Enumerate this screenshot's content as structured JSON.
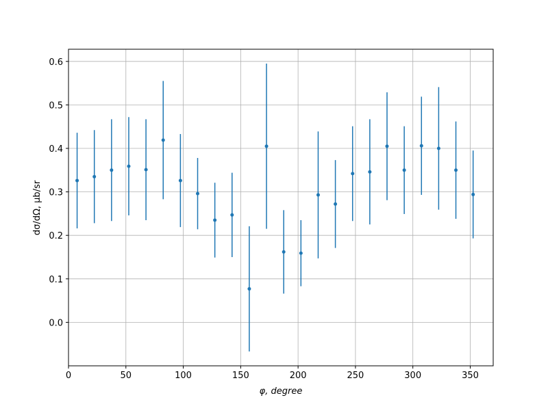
{
  "chart_data": {
    "type": "errorbar",
    "xlabel": "φ, degree",
    "ylabel": "dσ/dΩ, μb/sr",
    "xlim": [
      0,
      370
    ],
    "ylim": [
      -0.1,
      0.628
    ],
    "xticks": [
      0,
      50,
      100,
      150,
      200,
      250,
      300,
      350
    ],
    "yticks": [
      {
        "value": 0,
        "label": "0.0"
      },
      0.1,
      0.2,
      0.3,
      0.4,
      0.5,
      0.6
    ],
    "grid": true,
    "series": [
      {
        "color": "#1f77b4",
        "x": [
          7.5,
          22.5,
          37.5,
          52.5,
          67.5,
          82.5,
          97.5,
          112.5,
          127.5,
          142.5,
          157.5,
          172.5,
          187.5,
          202.5,
          217.5,
          232.5,
          247.5,
          262.5,
          277.5,
          292.5,
          307.5,
          322.5,
          337.5,
          352.5
        ],
        "values": [
          0.326,
          0.335,
          0.35,
          0.359,
          0.351,
          0.419,
          0.326,
          0.296,
          0.235,
          0.247,
          0.077,
          0.405,
          0.162,
          0.159,
          0.293,
          0.272,
          0.342,
          0.346,
          0.405,
          0.35,
          0.406,
          0.4,
          0.35,
          0.294
        ],
        "errors": [
          0.11,
          0.107,
          0.117,
          0.113,
          0.116,
          0.136,
          0.107,
          0.082,
          0.086,
          0.097,
          0.144,
          0.19,
          0.096,
          0.076,
          0.146,
          0.101,
          0.109,
          0.121,
          0.124,
          0.101,
          0.113,
          0.141,
          0.112,
          0.101
        ]
      }
    ]
  }
}
